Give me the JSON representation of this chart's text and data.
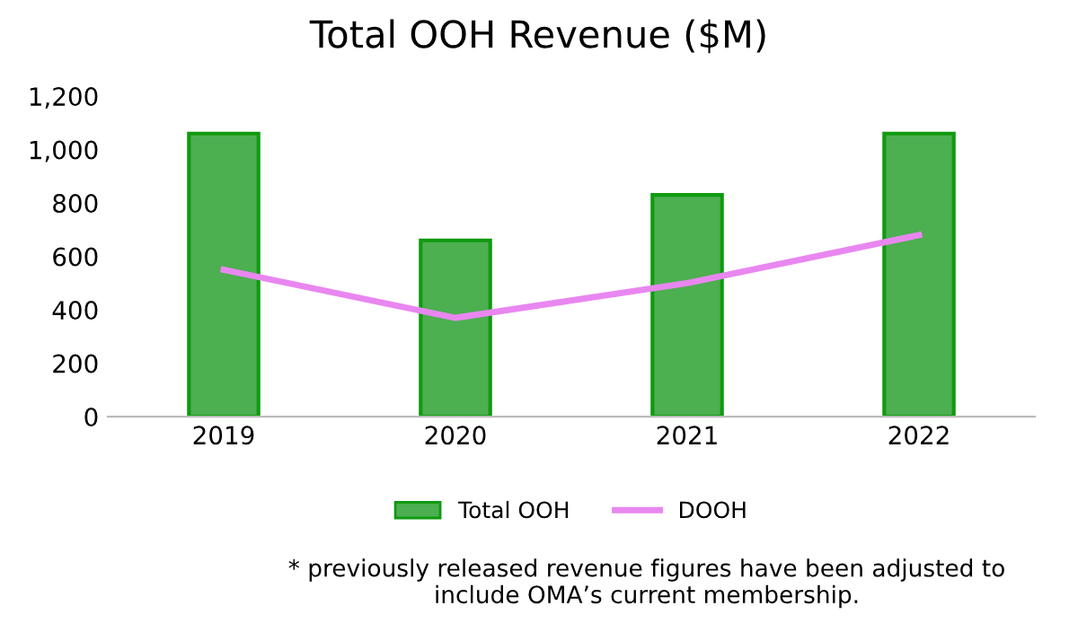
{
  "chart_data": {
    "type": "bar",
    "title": "Total OOH Revenue ($M)",
    "categories": [
      "2019",
      "2020",
      "2021",
      "2022"
    ],
    "series": [
      {
        "name": "Total OOH",
        "color": "#4caf50",
        "values": [
          1060,
          660,
          830,
          1060
        ]
      },
      {
        "name": "DOOH",
        "type": "line",
        "color": "#e987f0",
        "values": [
          550,
          370,
          500,
          680
        ]
      }
    ],
    "ylim": [
      0,
      1200
    ],
    "yticks": [
      0,
      {
        "value": 200,
        "label": "200"
      },
      {
        "value": 400,
        "label": "400"
      },
      {
        "value": 600,
        "label": "600"
      },
      {
        "value": 800,
        "label": "800"
      },
      {
        "value": 1000,
        "label": "1,000"
      },
      {
        "value": 1200,
        "label": "1,200"
      }
    ],
    "grid": false,
    "legend": "bottom",
    "marker": "none",
    "line_style": "solid",
    "annotations": [
      "* previously released revenue figures have been adjusted to\ninclude OMA’s current membership."
    ]
  }
}
